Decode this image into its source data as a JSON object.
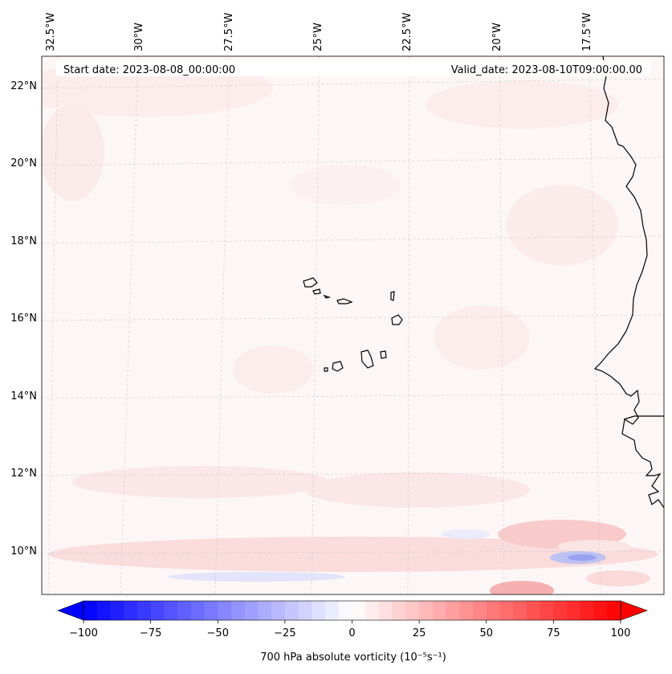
{
  "header": {
    "start_date": "Start date: 2023-08-08_00:00:00",
    "valid_date": "Valid_date: 2023-08-10T09:00:00.00"
  },
  "map": {
    "lon_labels": [
      "32.5°W",
      "30°W",
      "27.5°W",
      "25°W",
      "22.5°W",
      "20°W",
      "17.5°W"
    ],
    "lat_labels": [
      "22°N",
      "20°N",
      "18°N",
      "16°N",
      "14°N",
      "12°N",
      "10°N"
    ]
  },
  "colorbar": {
    "label": "700 hPa absolute vorticity (10⁻⁵s⁻¹)",
    "ticks": [
      "−100",
      "−75",
      "−50",
      "−25",
      "0",
      "25",
      "50",
      "75",
      "100"
    ],
    "min": -100,
    "max": 100,
    "levels": 40,
    "colors": {
      "negative": "#0000ff",
      "zero": "#ffffff",
      "positive": "#ff0000"
    }
  }
}
